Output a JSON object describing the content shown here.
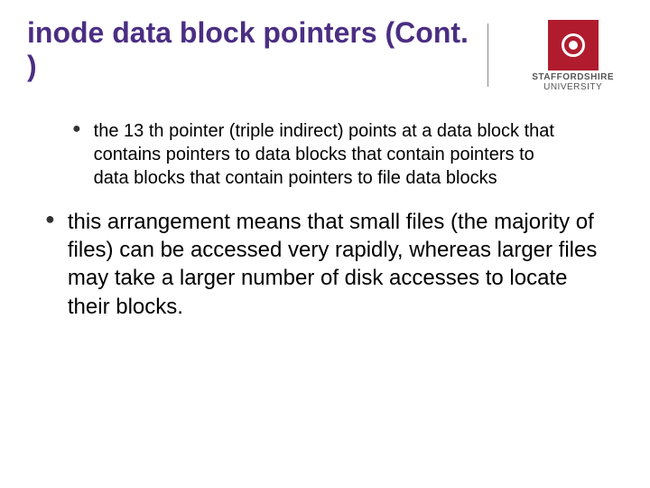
{
  "title": "inode data block pointers (Cont. )",
  "logo": {
    "line1": "STAFFORDSHIRE",
    "line2": "UNIVERSITY",
    "square_color": "#b01c2e"
  },
  "bullets": {
    "sub": "the 13 th pointer (triple indirect) points at a data block that contains pointers to data blocks that contain pointers to data blocks that contain pointers to file data blocks",
    "main": "this arrangement means that small files (the majority of files) can be accessed very rapidly, whereas larger files may take a larger number of disk accesses to locate their blocks."
  },
  "colors": {
    "title": "#4b2e83",
    "text": "#000000",
    "background": "#ffffff"
  },
  "fonts": {
    "title_size": 32,
    "sub_bullet_size": 20,
    "main_bullet_size": 24
  }
}
